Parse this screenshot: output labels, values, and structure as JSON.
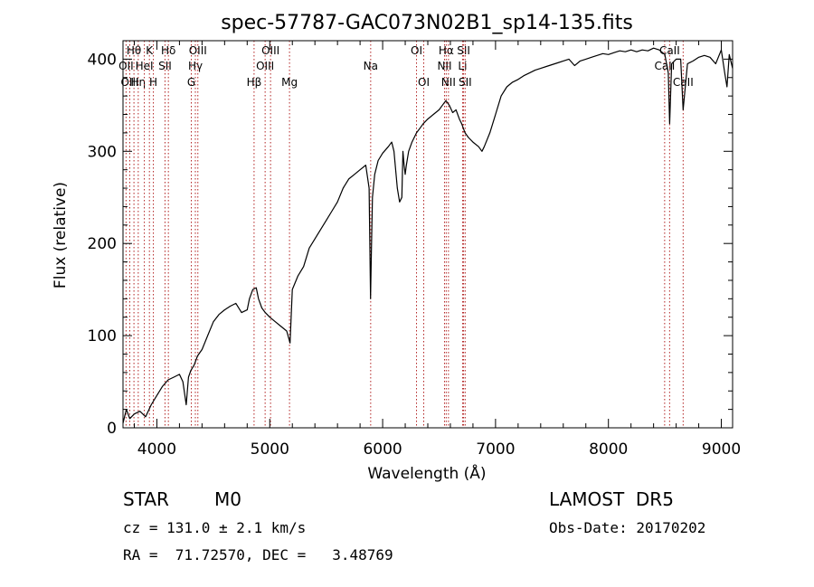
{
  "chart_data": {
    "type": "line",
    "title": "spec-57787-GAC073N02B1_sp14-135.fits",
    "xlabel": "Wavelength (Å)",
    "ylabel": "Flux (relative)",
    "xlim": [
      3700,
      9100
    ],
    "ylim": [
      0,
      420
    ],
    "xticks": [
      4000,
      5000,
      6000,
      7000,
      8000,
      9000
    ],
    "yticks": [
      0,
      100,
      200,
      300,
      400
    ],
    "grid": false,
    "line_color": "#000000",
    "marker_color": "#b22222",
    "series": [
      {
        "x": [
          3700,
          3730,
          3760,
          3800,
          3850,
          3900,
          3950,
          4000,
          4050,
          4100,
          4150,
          4200,
          4230,
          4260,
          4280,
          4300,
          4330,
          4360,
          4400,
          4450,
          4500,
          4550,
          4600,
          4650,
          4700,
          4750,
          4800,
          4820,
          4850,
          4880,
          4900,
          4930,
          4960,
          5000,
          5050,
          5100,
          5150,
          5180,
          5200,
          5250,
          5300,
          5350,
          5400,
          5450,
          5500,
          5550,
          5600,
          5650,
          5700,
          5750,
          5800,
          5850,
          5880,
          5893,
          5900,
          5910,
          5930,
          5960,
          6000,
          6050,
          6080,
          6100,
          6130,
          6150,
          6170,
          6180,
          6190,
          6200,
          6210,
          6230,
          6260,
          6280,
          6300,
          6330,
          6360,
          6400,
          6450,
          6500,
          6530,
          6560,
          6590,
          6620,
          6650,
          6680,
          6700,
          6730,
          6760,
          6800,
          6850,
          6880,
          6900,
          6950,
          7000,
          7050,
          7100,
          7150,
          7200,
          7250,
          7300,
          7350,
          7400,
          7450,
          7500,
          7550,
          7600,
          7650,
          7700,
          7750,
          7800,
          7850,
          7900,
          7950,
          8000,
          8050,
          8100,
          8150,
          8200,
          8250,
          8300,
          8350,
          8400,
          8450,
          8500,
          8530,
          8542,
          8560,
          8600,
          8640,
          8662,
          8700,
          8750,
          8800,
          8850,
          8900,
          8950,
          9000,
          9030,
          9050,
          9070,
          9100
        ],
        "y": [
          5,
          20,
          10,
          15,
          18,
          12,
          25,
          35,
          45,
          52,
          55,
          58,
          50,
          25,
          55,
          62,
          68,
          78,
          85,
          100,
          115,
          123,
          128,
          132,
          135,
          125,
          128,
          140,
          150,
          152,
          140,
          130,
          125,
          120,
          115,
          110,
          105,
          92,
          150,
          165,
          175,
          195,
          205,
          215,
          225,
          235,
          245,
          260,
          270,
          275,
          280,
          285,
          260,
          140,
          190,
          250,
          275,
          290,
          298,
          305,
          310,
          300,
          260,
          245,
          250,
          300,
          285,
          275,
          285,
          300,
          310,
          315,
          320,
          325,
          330,
          335,
          340,
          345,
          350,
          355,
          350,
          342,
          345,
          335,
          330,
          320,
          315,
          310,
          305,
          300,
          305,
          320,
          340,
          360,
          370,
          375,
          378,
          382,
          385,
          388,
          390,
          392,
          394,
          396,
          398,
          400,
          393,
          398,
          400,
          402,
          404,
          406,
          405,
          407,
          409,
          408,
          410,
          408,
          410,
          409,
          412,
          410,
          405,
          385,
          330,
          395,
          400,
          400,
          345,
          395,
          398,
          402,
          404,
          402,
          395,
          410,
          385,
          370,
          405,
          390
        ]
      }
    ],
    "spectral_lines": [
      {
        "name": "Hθ",
        "wavelength": 3797,
        "row": 1
      },
      {
        "name": "OII",
        "wavelength": 3727,
        "row": 2
      },
      {
        "name": "OIII",
        "wavelength": 3760,
        "row": 3
      },
      {
        "name": "Hη",
        "wavelength": 3835,
        "row": 3
      },
      {
        "name": "HeI",
        "wavelength": 3889,
        "row": 2
      },
      {
        "name": "K",
        "wavelength": 3934,
        "row": 1
      },
      {
        "name": "H",
        "wavelength": 3969,
        "row": 3
      },
      {
        "name": "SII",
        "wavelength": 4072,
        "row": 2
      },
      {
        "name": "Hδ",
        "wavelength": 4102,
        "row": 1
      },
      {
        "name": "G",
        "wavelength": 4305,
        "row": 3
      },
      {
        "name": "Hγ",
        "wavelength": 4341,
        "row": 2
      },
      {
        "name": "OIII",
        "wavelength": 4363,
        "row": 1
      },
      {
        "name": "Hβ",
        "wavelength": 4861,
        "row": 3
      },
      {
        "name": "OIII",
        "wavelength": 4959,
        "row": 2
      },
      {
        "name": "OIII",
        "wavelength": 5007,
        "row": 1
      },
      {
        "name": "Mg",
        "wavelength": 5175,
        "row": 3
      },
      {
        "name": "Na",
        "wavelength": 5894,
        "row": 2
      },
      {
        "name": "OI",
        "wavelength": 6300,
        "row": 1
      },
      {
        "name": "OI",
        "wavelength": 6364,
        "row": 3
      },
      {
        "name": "NII",
        "wavelength": 6548,
        "row": 2
      },
      {
        "name": "Hα",
        "wavelength": 6563,
        "row": 1
      },
      {
        "name": "NII",
        "wavelength": 6583,
        "row": 3
      },
      {
        "name": "Li",
        "wavelength": 6708,
        "row": 2
      },
      {
        "name": "SII",
        "wavelength": 6717,
        "row": 1
      },
      {
        "name": "SII",
        "wavelength": 6731,
        "row": 3
      },
      {
        "name": "CaII",
        "wavelength": 8498,
        "row": 2
      },
      {
        "name": "CaII",
        "wavelength": 8542,
        "row": 1
      },
      {
        "name": "CaII",
        "wavelength": 8662,
        "row": 3
      }
    ]
  },
  "info": {
    "classification": "STAR",
    "subclass": "M0",
    "survey": "LAMOST  DR5",
    "cz": "cz = 131.0 ± 2.1 km/s",
    "obs_date": "Obs-Date: 20170202",
    "coords": "RA =  71.72570, DEC =   3.48769"
  }
}
